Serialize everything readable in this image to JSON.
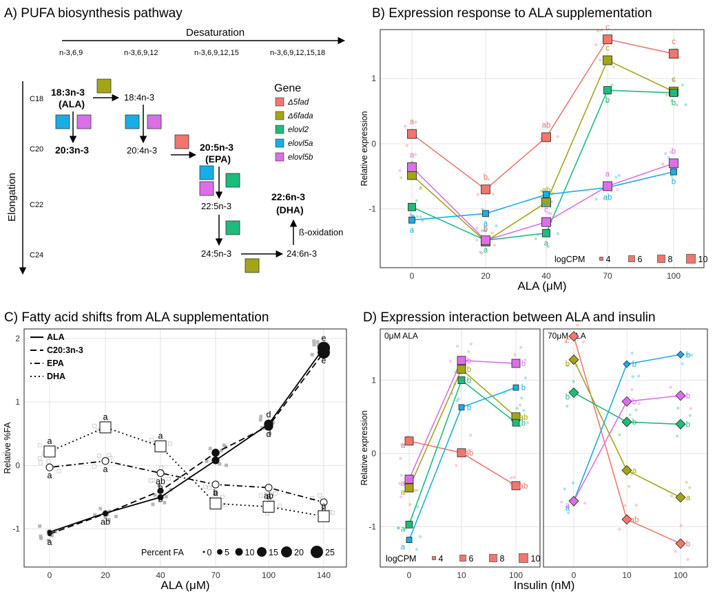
{
  "colors": {
    "d5fad": "#F0766E",
    "d6fada": "#A3A516",
    "elovl2": "#1DBB7C",
    "elovl5a": "#17AEE8",
    "elovl5b": "#DB6FE8",
    "fa_grey": "#8c8c8c"
  },
  "panelA": {
    "title": "A) PUFA biosynthesis pathway",
    "desaturation_label": "Desaturation",
    "elongation_label": "Elongation",
    "columns": [
      "n-3,6,9",
      "n-3,6,9,12",
      "n-3,6,9,12,15",
      "n-3,6,9,12,15,18"
    ],
    "rows": [
      "C18",
      "C20",
      "C22",
      "C24"
    ],
    "nodes": {
      "ala_1": "18:3n-3",
      "ala_2": "(ALA)",
      "n18_4": "18:4n-3",
      "n20_3": "20:3n-3",
      "n20_4": "20:4n-3",
      "epa_1": "20:5n-3",
      "epa_2": "(EPA)",
      "n22_5": "22:5n-3",
      "n24_5": "24:5n-3",
      "n24_6": "24:6n-3",
      "dha_1": "22:6n-3",
      "dha_2": "(DHA)",
      "beta_ox": "ß-oxidation"
    },
    "gene_legend_title": "Gene",
    "genes": [
      {
        "label": "Δ5fad",
        "color_key": "d5fad"
      },
      {
        "label": "Δ6fada",
        "color_key": "d6fada"
      },
      {
        "label": "elovl2",
        "color_key": "elovl2"
      },
      {
        "label": "elovl5a",
        "color_key": "elovl5a"
      },
      {
        "label": "elovl5b",
        "color_key": "elovl5b"
      }
    ]
  },
  "chart_data": [
    {
      "panel": "B",
      "type": "line",
      "title": "B) Expression response to ALA supplementation",
      "xlabel": "ALA (μM)",
      "ylabel": "Relative expression",
      "x": [
        0,
        20,
        40,
        70,
        100
      ],
      "x_tick_labels": [
        "0",
        "20",
        "40",
        "70",
        "100"
      ],
      "y_ticks": [
        -1,
        0,
        1
      ],
      "ylim": [
        -1.9,
        1.75
      ],
      "grid": true,
      "series": [
        {
          "name": "Δ5fad",
          "color_key": "d5fad",
          "values": [
            0.15,
            -0.7,
            0.1,
            1.6,
            1.38
          ],
          "letters": [
            "a",
            "b",
            "ab",
            "c",
            "c"
          ]
        },
        {
          "name": "Δ6fada",
          "color_key": "d6fada",
          "values": [
            -0.48,
            -1.5,
            -0.9,
            1.28,
            0.8
          ],
          "letters": [
            "a",
            "b",
            "ab",
            "c",
            "c"
          ]
        },
        {
          "name": "elovl2",
          "color_key": "elovl2",
          "values": [
            -0.97,
            -1.48,
            -1.37,
            0.82,
            0.78
          ],
          "letters": [
            "a",
            "a",
            "a",
            "b",
            "b"
          ]
        },
        {
          "name": "elovl5a",
          "color_key": "elovl5a",
          "values": [
            -1.17,
            -1.07,
            -0.78,
            -0.67,
            -0.43
          ],
          "letters": [
            "a",
            "a",
            "ab",
            "ab",
            "b"
          ]
        },
        {
          "name": "elovl5b",
          "color_key": "elovl5b",
          "values": [
            -0.36,
            -1.48,
            -1.2,
            -0.65,
            -0.3
          ],
          "letters": [
            "a",
            "c",
            "c",
            "a",
            "b"
          ]
        }
      ],
      "size_legend": {
        "title": "logCPM",
        "values": [
          "4",
          "6",
          "8",
          "10"
        ]
      }
    },
    {
      "panel": "C",
      "type": "line",
      "title": "C) Fatty acid shifts from ALA supplementation",
      "xlabel": "ALA (μM)",
      "ylabel": "Relative %FA",
      "x": [
        0,
        20,
        40,
        70,
        100,
        140
      ],
      "x_tick_labels": [
        "0",
        "20",
        "40",
        "70",
        "100",
        "140"
      ],
      "y_ticks": [
        -1,
        0,
        1,
        2
      ],
      "ylim": [
        -1.6,
        2.15
      ],
      "grid": true,
      "series": [
        {
          "name": "ALA",
          "line": "solid",
          "values": [
            -1.05,
            -0.75,
            -0.5,
            0.08,
            0.65,
            1.85
          ],
          "letters": [
            "a",
            "ab",
            "b",
            "c",
            "d",
            "e"
          ]
        },
        {
          "name": "C20:3n-3",
          "line": "dashed",
          "values": [
            -1.08,
            -0.76,
            -0.4,
            0.2,
            0.62,
            1.78
          ],
          "letters": [
            "a",
            "ab",
            "b",
            "c",
            "d",
            "e"
          ]
        },
        {
          "name": "EPA",
          "line": "dotdash",
          "values": [
            -0.03,
            0.07,
            -0.12,
            -0.3,
            -0.35,
            -0.58
          ],
          "letters": [
            "a",
            "a",
            "ab",
            "b",
            "ab",
            "b"
          ]
        },
        {
          "name": "DHA",
          "line": "dotted",
          "values": [
            0.22,
            0.6,
            0.3,
            -0.6,
            -0.65,
            -0.8
          ],
          "letters": [
            "a",
            "a",
            "a",
            "a",
            "a",
            "a"
          ]
        }
      ],
      "size_legend": {
        "title": "Percent FA",
        "values": [
          "0",
          "5",
          "10",
          "15",
          "20",
          "25"
        ]
      }
    },
    {
      "panel": "D",
      "type": "line",
      "title": "D) Expression interaction between ALA and insulin",
      "xlabel": "Insulin (nM)",
      "ylabel": "Relative expression",
      "x": [
        0,
        10,
        100
      ],
      "x_tick_labels": [
        "0",
        "10",
        "100"
      ],
      "y_ticks": [
        -1,
        0,
        1
      ],
      "ylim": [
        -1.55,
        1.7
      ],
      "grid": true,
      "facets": [
        {
          "label": "0μM  ALA",
          "series": [
            {
              "name": "Δ5fad",
              "color_key": "d5fad",
              "values": [
                0.17,
                0.01,
                -0.44
              ],
              "letters": [
                "a",
                "ab",
                "ab"
              ]
            },
            {
              "name": "Δ6fada",
              "color_key": "d6fada",
              "values": [
                -0.47,
                1.15,
                0.5
              ],
              "letters": [
                "a",
                "b",
                "ab"
              ]
            },
            {
              "name": "elovl2",
              "color_key": "elovl2",
              "values": [
                -0.97,
                1.0,
                0.42
              ],
              "letters": [
                "a",
                "b",
                "b"
              ]
            },
            {
              "name": "elovl5a",
              "color_key": "elovl5a",
              "values": [
                -1.18,
                0.63,
                0.9
              ],
              "letters": [
                "a",
                "b",
                "b"
              ]
            },
            {
              "name": "elovl5b",
              "color_key": "elovl5b",
              "values": [
                -0.35,
                1.27,
                1.23
              ],
              "letters": [
                "a",
                "b",
                "b"
              ]
            }
          ]
        },
        {
          "label": "70μM ALA",
          "series": [
            {
              "name": "Δ5fad",
              "color_key": "d5fad",
              "values": [
                1.6,
                -0.9,
                -1.23
              ],
              "letters": [
                "c",
                "ab",
                "b"
              ]
            },
            {
              "name": "Δ6fada",
              "color_key": "d6fada",
              "values": [
                1.28,
                -0.23,
                -0.6
              ],
              "letters": [
                "b",
                "a",
                "a"
              ]
            },
            {
              "name": "elovl2",
              "color_key": "elovl2",
              "values": [
                0.83,
                0.43,
                0.4
              ],
              "letters": [
                "b",
                "b",
                "b"
              ]
            },
            {
              "name": "elovl5a",
              "color_key": "elovl5a",
              "values": [
                -0.65,
                1.22,
                1.35
              ],
              "letters": [
                "a",
                "b",
                "b"
              ]
            },
            {
              "name": "elovl5b",
              "color_key": "elovl5b",
              "values": [
                -0.65,
                0.71,
                0.79
              ],
              "letters": [
                "a",
                "b",
                "b"
              ]
            }
          ]
        }
      ],
      "size_legend": {
        "title": "logCPM",
        "values": [
          "4",
          "6",
          "8",
          "10"
        ]
      }
    }
  ]
}
